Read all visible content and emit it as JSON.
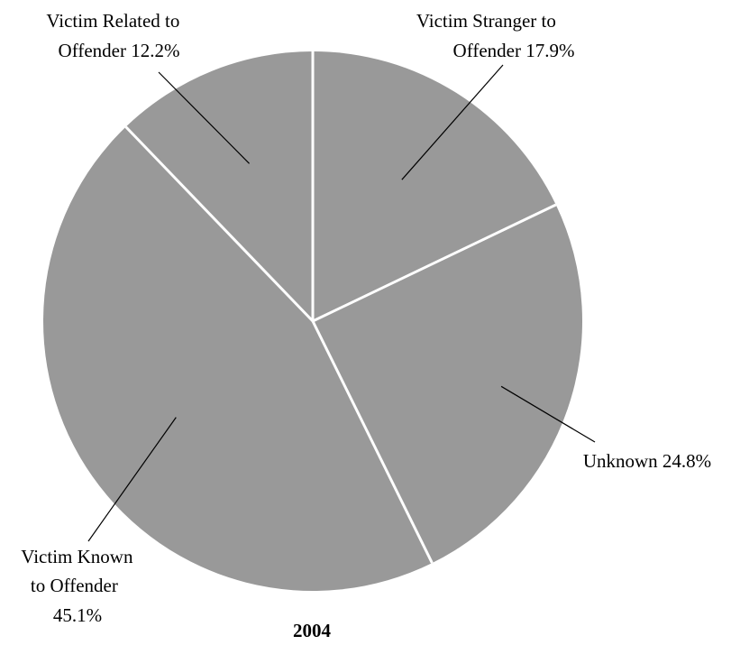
{
  "chart_data": {
    "type": "pie",
    "title": "2004",
    "slice_color": "#999999",
    "separator_color": "#ffffff",
    "slices": [
      {
        "label_lines": [
          "Victim Stranger to",
          "Offender 17.9%"
        ],
        "category": "Victim Stranger to Offender",
        "value": 17.9
      },
      {
        "label_lines": [
          "Unknown 24.8%"
        ],
        "category": "Unknown",
        "value": 24.8
      },
      {
        "label_lines": [
          "Victim Known",
          "to Offender",
          "45.1%"
        ],
        "category": "Victim Known to Offender",
        "value": 45.1
      },
      {
        "label_lines": [
          "Victim Related to",
          "Offender 12.2%"
        ],
        "category": "Victim Related to Offender",
        "value": 12.2
      }
    ]
  }
}
